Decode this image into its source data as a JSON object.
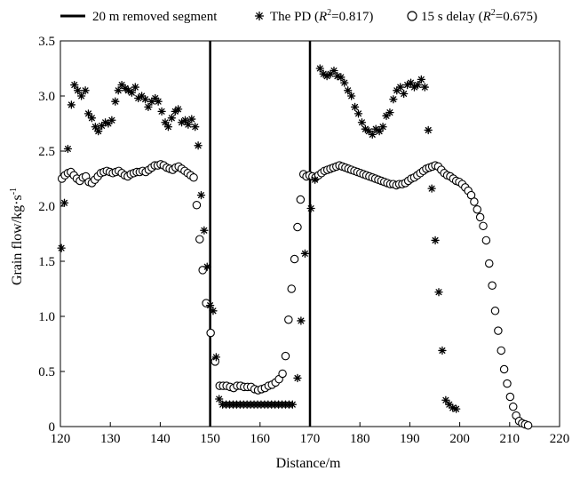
{
  "chart_data": {
    "type": "scatter",
    "xlabel": "Distance/m",
    "ylabel": {
      "base": "Grain flow/kg·s",
      "superscript": "-1"
    },
    "xlim": [
      120,
      220
    ],
    "ylim": [
      0,
      3.5
    ],
    "x_ticks": [
      "120",
      "130",
      "140",
      "150",
      "160",
      "170",
      "180",
      "190",
      "200",
      "210",
      "220"
    ],
    "y_ticks": [
      "0",
      "0.5",
      "1.0",
      "1.5",
      "2.0",
      "2.5",
      "3.0",
      "3.5"
    ],
    "grid": false,
    "legend": {
      "placement": "top",
      "removed_label": "20 m removed segment",
      "pd_label": {
        "name": "The PD (",
        "r": "R",
        "sup": "2",
        "value": "=0.817)"
      },
      "delay_label": {
        "name": "15 s delay (",
        "r": "R",
        "sup": "2",
        "value": "=0.675)"
      }
    },
    "removed_segment": {
      "x_start": 150,
      "x_end": 170
    },
    "series": [
      {
        "name": "The PD",
        "marker": "asterisk",
        "points": [
          [
            120.2,
            1.62
          ],
          [
            120.8,
            2.03
          ],
          [
            121.5,
            2.52
          ],
          [
            122.2,
            2.92
          ],
          [
            122.8,
            3.1
          ],
          [
            123.5,
            3.05
          ],
          [
            124.2,
            3.0
          ],
          [
            125.0,
            3.05
          ],
          [
            125.6,
            2.84
          ],
          [
            126.3,
            2.8
          ],
          [
            127.0,
            2.72
          ],
          [
            127.6,
            2.68
          ],
          [
            128.3,
            2.73
          ],
          [
            129.0,
            2.76
          ],
          [
            129.6,
            2.75
          ],
          [
            130.3,
            2.78
          ],
          [
            131.0,
            2.95
          ],
          [
            131.6,
            3.05
          ],
          [
            132.3,
            3.1
          ],
          [
            133.0,
            3.07
          ],
          [
            133.6,
            3.05
          ],
          [
            134.3,
            3.03
          ],
          [
            135.0,
            3.08
          ],
          [
            135.6,
            2.98
          ],
          [
            136.3,
            3.0
          ],
          [
            137.0,
            2.97
          ],
          [
            137.6,
            2.9
          ],
          [
            138.3,
            2.95
          ],
          [
            139.0,
            2.98
          ],
          [
            139.6,
            2.95
          ],
          [
            140.3,
            2.86
          ],
          [
            141.0,
            2.76
          ],
          [
            141.6,
            2.72
          ],
          [
            142.3,
            2.8
          ],
          [
            143.0,
            2.86
          ],
          [
            143.6,
            2.88
          ],
          [
            144.3,
            2.76
          ],
          [
            145.0,
            2.78
          ],
          [
            145.6,
            2.74
          ],
          [
            146.3,
            2.79
          ],
          [
            147.0,
            2.72
          ],
          [
            147.6,
            2.55
          ],
          [
            148.2,
            2.1
          ],
          [
            148.8,
            1.78
          ],
          [
            149.4,
            1.45
          ],
          [
            150.0,
            1.1
          ],
          [
            150.6,
            1.05
          ],
          [
            151.2,
            0.63
          ],
          [
            151.8,
            0.25
          ],
          [
            152.5,
            0.2
          ],
          [
            153.2,
            0.2
          ],
          [
            153.9,
            0.2
          ],
          [
            154.6,
            0.2
          ],
          [
            155.3,
            0.2
          ],
          [
            156.0,
            0.2
          ],
          [
            156.7,
            0.2
          ],
          [
            157.4,
            0.2
          ],
          [
            158.1,
            0.2
          ],
          [
            158.8,
            0.2
          ],
          [
            159.5,
            0.2
          ],
          [
            160.2,
            0.2
          ],
          [
            160.9,
            0.2
          ],
          [
            161.6,
            0.2
          ],
          [
            162.3,
            0.2
          ],
          [
            163.0,
            0.2
          ],
          [
            163.7,
            0.2
          ],
          [
            164.4,
            0.2
          ],
          [
            165.1,
            0.2
          ],
          [
            165.8,
            0.2
          ],
          [
            166.5,
            0.2
          ],
          [
            167.5,
            0.44
          ],
          [
            168.2,
            0.96
          ],
          [
            169.0,
            1.57
          ],
          [
            170.2,
            1.98
          ],
          [
            171.0,
            2.24
          ],
          [
            172.0,
            3.25
          ],
          [
            172.7,
            3.2
          ],
          [
            173.4,
            3.18
          ],
          [
            174.1,
            3.2
          ],
          [
            174.8,
            3.23
          ],
          [
            175.5,
            3.18
          ],
          [
            176.2,
            3.17
          ],
          [
            176.9,
            3.12
          ],
          [
            177.6,
            3.05
          ],
          [
            178.3,
            3.0
          ],
          [
            179.0,
            2.9
          ],
          [
            179.7,
            2.84
          ],
          [
            180.4,
            2.76
          ],
          [
            181.1,
            2.7
          ],
          [
            181.8,
            2.68
          ],
          [
            182.5,
            2.65
          ],
          [
            183.2,
            2.7
          ],
          [
            183.9,
            2.68
          ],
          [
            184.6,
            2.72
          ],
          [
            185.3,
            2.82
          ],
          [
            186.0,
            2.85
          ],
          [
            186.7,
            2.97
          ],
          [
            187.4,
            3.05
          ],
          [
            188.1,
            3.08
          ],
          [
            188.8,
            3.02
          ],
          [
            189.5,
            3.1
          ],
          [
            190.2,
            3.12
          ],
          [
            190.9,
            3.08
          ],
          [
            191.6,
            3.1
          ],
          [
            192.3,
            3.15
          ],
          [
            193.0,
            3.08
          ],
          [
            193.7,
            2.69
          ],
          [
            194.4,
            2.16
          ],
          [
            195.1,
            1.69
          ],
          [
            195.8,
            1.22
          ],
          [
            196.5,
            0.69
          ],
          [
            197.2,
            0.24
          ],
          [
            197.9,
            0.2
          ],
          [
            198.6,
            0.17
          ],
          [
            199.3,
            0.16
          ]
        ]
      },
      {
        "name": "15 s delay",
        "marker": "open-circle",
        "points": [
          [
            120.3,
            2.25
          ],
          [
            120.9,
            2.28
          ],
          [
            121.5,
            2.3
          ],
          [
            122.1,
            2.31
          ],
          [
            122.7,
            2.28
          ],
          [
            123.3,
            2.25
          ],
          [
            123.9,
            2.23
          ],
          [
            124.5,
            2.26
          ],
          [
            125.1,
            2.27
          ],
          [
            125.7,
            2.22
          ],
          [
            126.3,
            2.21
          ],
          [
            126.9,
            2.24
          ],
          [
            127.5,
            2.27
          ],
          [
            128.1,
            2.3
          ],
          [
            128.7,
            2.31
          ],
          [
            129.3,
            2.32
          ],
          [
            129.9,
            2.31
          ],
          [
            130.5,
            2.3
          ],
          [
            131.1,
            2.31
          ],
          [
            131.7,
            2.32
          ],
          [
            132.3,
            2.3
          ],
          [
            132.9,
            2.28
          ],
          [
            133.5,
            2.27
          ],
          [
            134.1,
            2.29
          ],
          [
            134.7,
            2.3
          ],
          [
            135.3,
            2.31
          ],
          [
            135.9,
            2.31
          ],
          [
            136.5,
            2.32
          ],
          [
            137.1,
            2.31
          ],
          [
            137.7,
            2.33
          ],
          [
            138.3,
            2.35
          ],
          [
            138.9,
            2.37
          ],
          [
            139.5,
            2.37
          ],
          [
            140.1,
            2.38
          ],
          [
            140.7,
            2.37
          ],
          [
            141.3,
            2.35
          ],
          [
            141.9,
            2.34
          ],
          [
            142.5,
            2.33
          ],
          [
            143.1,
            2.35
          ],
          [
            143.7,
            2.36
          ],
          [
            144.3,
            2.34
          ],
          [
            144.9,
            2.32
          ],
          [
            145.5,
            2.3
          ],
          [
            146.1,
            2.28
          ],
          [
            146.7,
            2.26
          ],
          [
            147.3,
            2.01
          ],
          [
            147.9,
            1.7
          ],
          [
            148.5,
            1.42
          ],
          [
            149.2,
            1.12
          ],
          [
            150.1,
            0.85
          ],
          [
            151.0,
            0.59
          ],
          [
            151.9,
            0.37
          ],
          [
            152.6,
            0.37
          ],
          [
            153.3,
            0.37
          ],
          [
            154.0,
            0.36
          ],
          [
            154.7,
            0.35
          ],
          [
            155.4,
            0.37
          ],
          [
            156.1,
            0.37
          ],
          [
            156.8,
            0.36
          ],
          [
            157.5,
            0.36
          ],
          [
            158.2,
            0.36
          ],
          [
            158.9,
            0.34
          ],
          [
            159.6,
            0.33
          ],
          [
            160.3,
            0.34
          ],
          [
            161.0,
            0.35
          ],
          [
            161.7,
            0.37
          ],
          [
            162.4,
            0.38
          ],
          [
            163.1,
            0.4
          ],
          [
            163.8,
            0.43
          ],
          [
            164.5,
            0.48
          ],
          [
            165.1,
            0.64
          ],
          [
            165.7,
            0.97
          ],
          [
            166.3,
            1.25
          ],
          [
            166.9,
            1.52
          ],
          [
            167.5,
            1.81
          ],
          [
            168.1,
            2.06
          ],
          [
            168.7,
            2.29
          ],
          [
            169.3,
            2.27
          ],
          [
            169.9,
            2.28
          ],
          [
            170.5,
            2.27
          ],
          [
            171.1,
            2.26
          ],
          [
            171.7,
            2.28
          ],
          [
            172.3,
            2.3
          ],
          [
            172.9,
            2.32
          ],
          [
            173.5,
            2.33
          ],
          [
            174.1,
            2.34
          ],
          [
            174.7,
            2.35
          ],
          [
            175.3,
            2.36
          ],
          [
            175.9,
            2.37
          ],
          [
            176.5,
            2.36
          ],
          [
            177.1,
            2.35
          ],
          [
            177.7,
            2.34
          ],
          [
            178.3,
            2.33
          ],
          [
            178.9,
            2.32
          ],
          [
            179.5,
            2.31
          ],
          [
            180.1,
            2.3
          ],
          [
            180.7,
            2.29
          ],
          [
            181.3,
            2.28
          ],
          [
            181.9,
            2.27
          ],
          [
            182.5,
            2.26
          ],
          [
            183.1,
            2.25
          ],
          [
            183.7,
            2.24
          ],
          [
            184.3,
            2.23
          ],
          [
            184.9,
            2.22
          ],
          [
            185.5,
            2.21
          ],
          [
            186.1,
            2.2
          ],
          [
            186.7,
            2.2
          ],
          [
            187.3,
            2.19
          ],
          [
            187.9,
            2.2
          ],
          [
            188.5,
            2.2
          ],
          [
            189.1,
            2.21
          ],
          [
            189.7,
            2.23
          ],
          [
            190.3,
            2.25
          ],
          [
            190.9,
            2.26
          ],
          [
            191.5,
            2.28
          ],
          [
            192.1,
            2.3
          ],
          [
            192.7,
            2.32
          ],
          [
            193.3,
            2.34
          ],
          [
            193.9,
            2.35
          ],
          [
            194.5,
            2.36
          ],
          [
            195.1,
            2.37
          ],
          [
            195.7,
            2.36
          ],
          [
            196.3,
            2.33
          ],
          [
            196.9,
            2.3
          ],
          [
            197.5,
            2.28
          ],
          [
            198.1,
            2.27
          ],
          [
            198.7,
            2.25
          ],
          [
            199.3,
            2.23
          ],
          [
            199.9,
            2.22
          ],
          [
            200.5,
            2.2
          ],
          [
            201.1,
            2.17
          ],
          [
            201.7,
            2.14
          ],
          [
            202.3,
            2.1
          ],
          [
            202.9,
            2.04
          ],
          [
            203.5,
            1.97
          ],
          [
            204.1,
            1.9
          ],
          [
            204.7,
            1.82
          ],
          [
            205.3,
            1.69
          ],
          [
            205.9,
            1.48
          ],
          [
            206.5,
            1.28
          ],
          [
            207.1,
            1.05
          ],
          [
            207.7,
            0.87
          ],
          [
            208.3,
            0.69
          ],
          [
            208.9,
            0.52
          ],
          [
            209.5,
            0.39
          ],
          [
            210.1,
            0.27
          ],
          [
            210.7,
            0.18
          ],
          [
            211.3,
            0.1
          ],
          [
            211.9,
            0.05
          ],
          [
            212.5,
            0.03
          ],
          [
            213.1,
            0.02
          ],
          [
            213.7,
            0.01
          ]
        ]
      }
    ]
  }
}
